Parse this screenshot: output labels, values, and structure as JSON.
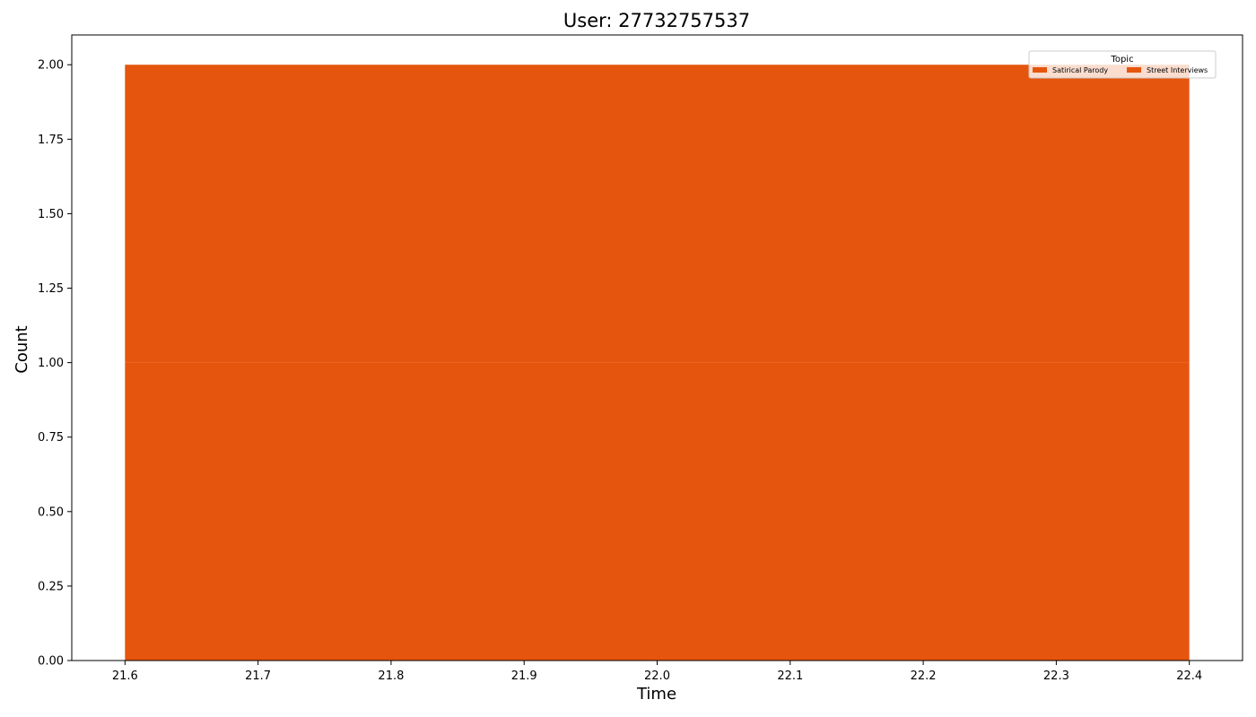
{
  "chart_data": {
    "type": "area",
    "title": "User: 27732757537",
    "xlabel": "Time",
    "ylabel": "Count",
    "x": [
      21.6,
      22.4
    ],
    "series": [
      {
        "name": "Satirical Parody",
        "values": [
          1,
          1
        ],
        "color": "#e6550d"
      },
      {
        "name": "Street Interviews",
        "values": [
          1,
          1
        ],
        "color": "#e6550d"
      }
    ],
    "stacked": true,
    "xlim": [
      21.56,
      22.44
    ],
    "ylim": [
      0,
      2.1
    ],
    "xticks": [
      21.6,
      21.7,
      21.8,
      21.9,
      22.0,
      22.1,
      22.2,
      22.3,
      22.4
    ],
    "xtick_labels": [
      "21.6",
      "21.7",
      "21.8",
      "21.9",
      "22.0",
      "22.1",
      "22.2",
      "22.3",
      "22.4"
    ],
    "yticks": [
      0,
      0.25,
      0.5,
      0.75,
      1.0,
      1.25,
      1.5,
      1.75,
      2.0
    ],
    "ytick_labels": [
      "0.00",
      "0.25",
      "0.50",
      "0.75",
      "1.00",
      "1.25",
      "1.50",
      "1.75",
      "2.00"
    ],
    "legend": {
      "title": "Topic",
      "placement": "top-right",
      "columns": 2
    },
    "grid": false
  }
}
